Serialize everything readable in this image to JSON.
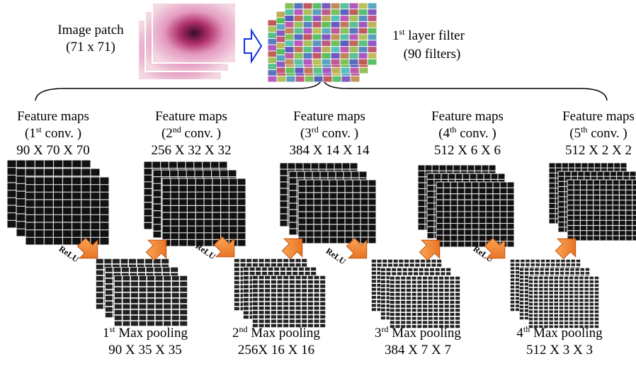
{
  "input": {
    "title": "Image patch",
    "size": "(71 x 71)"
  },
  "filter": {
    "num": "1",
    "sup": "st",
    "rest": " layer filter",
    "count": "(90 filters)"
  },
  "conv_layers": [
    {
      "title": "Feature maps",
      "pre": "(1",
      "sup": "st",
      "post": " conv. )",
      "dims": "90 X 70 X 70"
    },
    {
      "title": "Feature maps",
      "pre": "(2",
      "sup": "nd",
      "post": " conv. )",
      "dims": "256 X 32 X 32"
    },
    {
      "title": "Feature maps",
      "pre": "(3",
      "sup": "rd",
      "post": "  conv. )",
      "dims": "384 X 14 X 14"
    },
    {
      "title": "Feature maps",
      "pre": "(4",
      "sup": "th",
      "post": " conv. )",
      "dims": "512 X 6 X 6"
    },
    {
      "title": "Feature maps",
      "pre": "(5",
      "sup": "th",
      "post": " conv. )",
      "dims": "512 X 2 X 2"
    }
  ],
  "relu": [
    "ReLU",
    "ReLU",
    "ReLU",
    "ReLU"
  ],
  "pooling": [
    {
      "num": "1",
      "sup": "st",
      "rest": " Max pooling",
      "dims": "90 X 35 X 35"
    },
    {
      "num": "2",
      "sup": "nd",
      "rest": " Max pooling",
      "dims": "256X 16 X 16"
    },
    {
      "num": "3",
      "sup": "rd",
      "rest": " Max pooling",
      "dims": "384 X 7 X 7"
    },
    {
      "num": "4",
      "sup": "th",
      "rest": " Max pooling",
      "dims": "512 X 3 X 3"
    }
  ]
}
